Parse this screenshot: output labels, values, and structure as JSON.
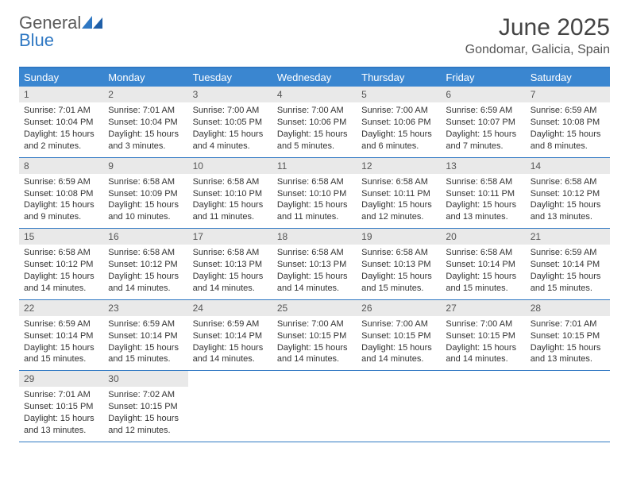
{
  "logo": {
    "word1": "General",
    "word2": "Blue"
  },
  "title": "June 2025",
  "location": "Gondomar, Galicia, Spain",
  "weekdays": [
    "Sunday",
    "Monday",
    "Tuesday",
    "Wednesday",
    "Thursday",
    "Friday",
    "Saturday"
  ],
  "colors": {
    "header_blue": "#3a86d0",
    "rule_blue": "#2f78c3",
    "daynum_bg": "#e9e9e9"
  },
  "weeks": [
    [
      {
        "n": "1",
        "sr": "7:01 AM",
        "ss": "10:04 PM",
        "dl": "15 hours and 2 minutes."
      },
      {
        "n": "2",
        "sr": "7:01 AM",
        "ss": "10:04 PM",
        "dl": "15 hours and 3 minutes."
      },
      {
        "n": "3",
        "sr": "7:00 AM",
        "ss": "10:05 PM",
        "dl": "15 hours and 4 minutes."
      },
      {
        "n": "4",
        "sr": "7:00 AM",
        "ss": "10:06 PM",
        "dl": "15 hours and 5 minutes."
      },
      {
        "n": "5",
        "sr": "7:00 AM",
        "ss": "10:06 PM",
        "dl": "15 hours and 6 minutes."
      },
      {
        "n": "6",
        "sr": "6:59 AM",
        "ss": "10:07 PM",
        "dl": "15 hours and 7 minutes."
      },
      {
        "n": "7",
        "sr": "6:59 AM",
        "ss": "10:08 PM",
        "dl": "15 hours and 8 minutes."
      }
    ],
    [
      {
        "n": "8",
        "sr": "6:59 AM",
        "ss": "10:08 PM",
        "dl": "15 hours and 9 minutes."
      },
      {
        "n": "9",
        "sr": "6:58 AM",
        "ss": "10:09 PM",
        "dl": "15 hours and 10 minutes."
      },
      {
        "n": "10",
        "sr": "6:58 AM",
        "ss": "10:10 PM",
        "dl": "15 hours and 11 minutes."
      },
      {
        "n": "11",
        "sr": "6:58 AM",
        "ss": "10:10 PM",
        "dl": "15 hours and 11 minutes."
      },
      {
        "n": "12",
        "sr": "6:58 AM",
        "ss": "10:11 PM",
        "dl": "15 hours and 12 minutes."
      },
      {
        "n": "13",
        "sr": "6:58 AM",
        "ss": "10:11 PM",
        "dl": "15 hours and 13 minutes."
      },
      {
        "n": "14",
        "sr": "6:58 AM",
        "ss": "10:12 PM",
        "dl": "15 hours and 13 minutes."
      }
    ],
    [
      {
        "n": "15",
        "sr": "6:58 AM",
        "ss": "10:12 PM",
        "dl": "15 hours and 14 minutes."
      },
      {
        "n": "16",
        "sr": "6:58 AM",
        "ss": "10:12 PM",
        "dl": "15 hours and 14 minutes."
      },
      {
        "n": "17",
        "sr": "6:58 AM",
        "ss": "10:13 PM",
        "dl": "15 hours and 14 minutes."
      },
      {
        "n": "18",
        "sr": "6:58 AM",
        "ss": "10:13 PM",
        "dl": "15 hours and 14 minutes."
      },
      {
        "n": "19",
        "sr": "6:58 AM",
        "ss": "10:13 PM",
        "dl": "15 hours and 15 minutes."
      },
      {
        "n": "20",
        "sr": "6:58 AM",
        "ss": "10:14 PM",
        "dl": "15 hours and 15 minutes."
      },
      {
        "n": "21",
        "sr": "6:59 AM",
        "ss": "10:14 PM",
        "dl": "15 hours and 15 minutes."
      }
    ],
    [
      {
        "n": "22",
        "sr": "6:59 AM",
        "ss": "10:14 PM",
        "dl": "15 hours and 15 minutes."
      },
      {
        "n": "23",
        "sr": "6:59 AM",
        "ss": "10:14 PM",
        "dl": "15 hours and 15 minutes."
      },
      {
        "n": "24",
        "sr": "6:59 AM",
        "ss": "10:14 PM",
        "dl": "15 hours and 14 minutes."
      },
      {
        "n": "25",
        "sr": "7:00 AM",
        "ss": "10:15 PM",
        "dl": "15 hours and 14 minutes."
      },
      {
        "n": "26",
        "sr": "7:00 AM",
        "ss": "10:15 PM",
        "dl": "15 hours and 14 minutes."
      },
      {
        "n": "27",
        "sr": "7:00 AM",
        "ss": "10:15 PM",
        "dl": "15 hours and 14 minutes."
      },
      {
        "n": "28",
        "sr": "7:01 AM",
        "ss": "10:15 PM",
        "dl": "15 hours and 13 minutes."
      }
    ],
    [
      {
        "n": "29",
        "sr": "7:01 AM",
        "ss": "10:15 PM",
        "dl": "15 hours and 13 minutes."
      },
      {
        "n": "30",
        "sr": "7:02 AM",
        "ss": "10:15 PM",
        "dl": "15 hours and 12 minutes."
      },
      null,
      null,
      null,
      null,
      null
    ]
  ],
  "labels": {
    "sunrise": "Sunrise:",
    "sunset": "Sunset:",
    "daylight": "Daylight:"
  }
}
